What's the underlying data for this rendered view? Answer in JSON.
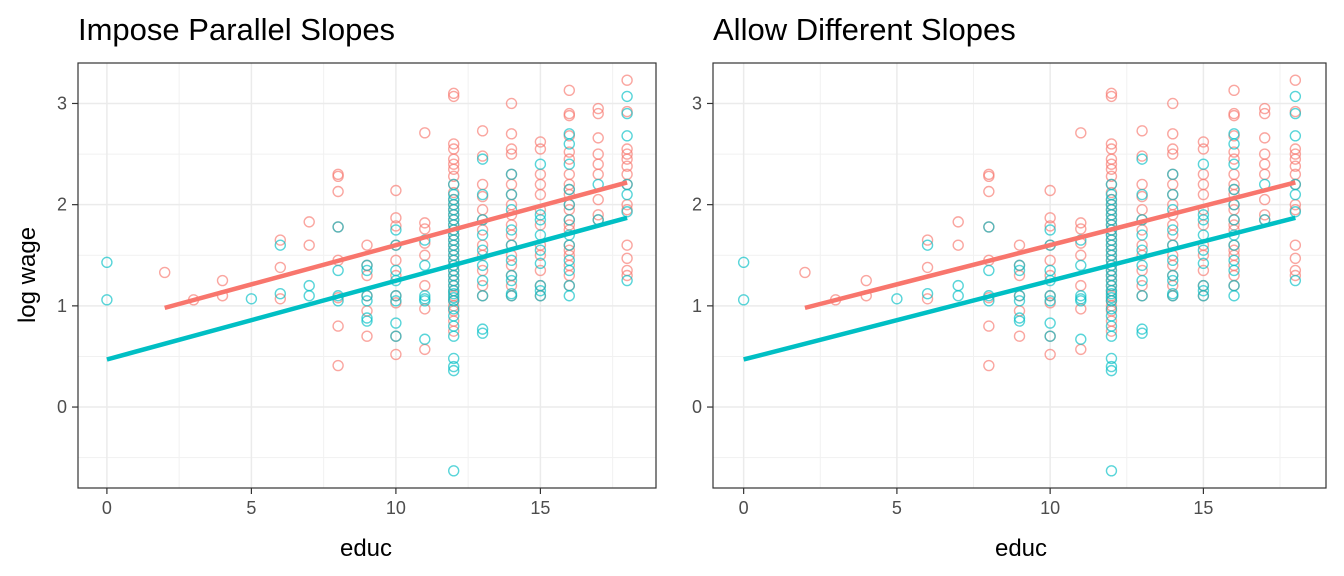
{
  "chart_data": [
    {
      "type": "scatter",
      "title": "Impose Parallel Slopes",
      "xlabel": "educ",
      "ylabel": "log wage",
      "xlim": [
        -1,
        19
      ],
      "ylim": [
        -0.8,
        3.4
      ],
      "xticks": [
        0,
        5,
        10,
        15
      ],
      "yticks": [
        0,
        1,
        2,
        3
      ],
      "grid": true,
      "legend": "none",
      "series": [
        {
          "color": "#F8766D",
          "points": [
            [
              2,
              1.33
            ],
            [
              3,
              1.06
            ],
            [
              4,
              1.25
            ],
            [
              4,
              1.1
            ],
            [
              6,
              1.65
            ],
            [
              6,
              1.38
            ],
            [
              6,
              1.07
            ],
            [
              7,
              1.83
            ],
            [
              7,
              1.6
            ],
            [
              8,
              2.3
            ],
            [
              8,
              2.28
            ],
            [
              8,
              2.13
            ],
            [
              8,
              1.78
            ],
            [
              8,
              1.45
            ],
            [
              8,
              1.08
            ],
            [
              8,
              0.8
            ],
            [
              8,
              0.41
            ],
            [
              9,
              1.6
            ],
            [
              9,
              1.4
            ],
            [
              9,
              1.3
            ],
            [
              9,
              1.1
            ],
            [
              9,
              0.95
            ],
            [
              9,
              0.7
            ],
            [
              10,
              2.14
            ],
            [
              10,
              1.87
            ],
            [
              10,
              1.79
            ],
            [
              10,
              1.6
            ],
            [
              10,
              1.45
            ],
            [
              10,
              1.3
            ],
            [
              10,
              1.1
            ],
            [
              10,
              1.03
            ],
            [
              10,
              0.7
            ],
            [
              10,
              0.52
            ],
            [
              11,
              2.71
            ],
            [
              11,
              1.82
            ],
            [
              11,
              1.76
            ],
            [
              11,
              1.62
            ],
            [
              11,
              1.5
            ],
            [
              11,
              1.2
            ],
            [
              11,
              0.97
            ],
            [
              11,
              0.57
            ],
            [
              12,
              3.1
            ],
            [
              12,
              3.07
            ],
            [
              12,
              2.6
            ],
            [
              12,
              2.55
            ],
            [
              12,
              2.45
            ],
            [
              12,
              2.4
            ],
            [
              12,
              2.35
            ],
            [
              12,
              2.28
            ],
            [
              12,
              2.2
            ],
            [
              12,
              2.12
            ],
            [
              12,
              2.05
            ],
            [
              12,
              2.0
            ],
            [
              12,
              1.95
            ],
            [
              12,
              1.9
            ],
            [
              12,
              1.85
            ],
            [
              12,
              1.8
            ],
            [
              12,
              1.75
            ],
            [
              12,
              1.7
            ],
            [
              12,
              1.65
            ],
            [
              12,
              1.6
            ],
            [
              12,
              1.55
            ],
            [
              12,
              1.5
            ],
            [
              12,
              1.45
            ],
            [
              12,
              1.4
            ],
            [
              12,
              1.35
            ],
            [
              12,
              1.3
            ],
            [
              12,
              1.25
            ],
            [
              12,
              1.2
            ],
            [
              12,
              1.15
            ],
            [
              12,
              1.1
            ],
            [
              12,
              1.05
            ],
            [
              12,
              1.0
            ],
            [
              12,
              0.95
            ],
            [
              12,
              0.85
            ],
            [
              12,
              0.75
            ],
            [
              13,
              2.73
            ],
            [
              13,
              2.48
            ],
            [
              13,
              2.2
            ],
            [
              13,
              2.08
            ],
            [
              13,
              1.95
            ],
            [
              13,
              1.85
            ],
            [
              13,
              1.75
            ],
            [
              13,
              1.6
            ],
            [
              13,
              1.5
            ],
            [
              13,
              1.35
            ],
            [
              13,
              1.2
            ],
            [
              13,
              1.1
            ],
            [
              14,
              3.0
            ],
            [
              14,
              2.7
            ],
            [
              14,
              2.55
            ],
            [
              14,
              2.5
            ],
            [
              14,
              2.3
            ],
            [
              14,
              2.2
            ],
            [
              14,
              2.1
            ],
            [
              14,
              2.0
            ],
            [
              14,
              1.9
            ],
            [
              14,
              1.8
            ],
            [
              14,
              1.7
            ],
            [
              14,
              1.6
            ],
            [
              14,
              1.5
            ],
            [
              14,
              1.4
            ],
            [
              14,
              1.3
            ],
            [
              14,
              1.2
            ],
            [
              14,
              1.1
            ],
            [
              15,
              2.62
            ],
            [
              15,
              2.55
            ],
            [
              15,
              2.3
            ],
            [
              15,
              2.2
            ],
            [
              15,
              2.1
            ],
            [
              15,
              1.95
            ],
            [
              15,
              1.8
            ],
            [
              15,
              1.6
            ],
            [
              15,
              1.5
            ],
            [
              15,
              1.35
            ],
            [
              15,
              1.2
            ],
            [
              15,
              1.1
            ],
            [
              16,
              3.13
            ],
            [
              16,
              2.9
            ],
            [
              16,
              2.88
            ],
            [
              16,
              2.68
            ],
            [
              16,
              2.52
            ],
            [
              16,
              2.45
            ],
            [
              16,
              2.3
            ],
            [
              16,
              2.2
            ],
            [
              16,
              2.15
            ],
            [
              16,
              2.1
            ],
            [
              16,
              2.0
            ],
            [
              16,
              1.95
            ],
            [
              16,
              1.85
            ],
            [
              16,
              1.8
            ],
            [
              16,
              1.75
            ],
            [
              16,
              1.6
            ],
            [
              16,
              1.55
            ],
            [
              16,
              1.5
            ],
            [
              16,
              1.4
            ],
            [
              16,
              1.3
            ],
            [
              16,
              1.2
            ],
            [
              17,
              2.95
            ],
            [
              17,
              2.9
            ],
            [
              17,
              2.66
            ],
            [
              17,
              2.5
            ],
            [
              17,
              2.4
            ],
            [
              17,
              2.3
            ],
            [
              17,
              2.05
            ],
            [
              17,
              1.9
            ],
            [
              17,
              1.85
            ],
            [
              18,
              3.23
            ],
            [
              18,
              2.92
            ],
            [
              18,
              2.55
            ],
            [
              18,
              2.5
            ],
            [
              18,
              2.45
            ],
            [
              18,
              2.38
            ],
            [
              18,
              2.3
            ],
            [
              18,
              2.2
            ],
            [
              18,
              2.0
            ],
            [
              18,
              1.95
            ],
            [
              18,
              1.6
            ],
            [
              18,
              1.47
            ],
            [
              18,
              1.35
            ],
            [
              18,
              1.3
            ]
          ],
          "line": [
            [
              2,
              0.98
            ],
            [
              18,
              2.22
            ]
          ]
        },
        {
          "color": "#00BFC4",
          "points": [
            [
              0,
              1.43
            ],
            [
              0,
              1.06
            ],
            [
              5,
              1.07
            ],
            [
              6,
              1.6
            ],
            [
              6,
              1.12
            ],
            [
              7,
              1.2
            ],
            [
              7,
              1.1
            ],
            [
              8,
              1.78
            ],
            [
              8,
              1.35
            ],
            [
              8,
              1.1
            ],
            [
              8,
              1.05
            ],
            [
              9,
              1.4
            ],
            [
              9,
              1.35
            ],
            [
              9,
              1.1
            ],
            [
              9,
              1.05
            ],
            [
              9,
              0.88
            ],
            [
              9,
              0.85
            ],
            [
              10,
              1.75
            ],
            [
              10,
              1.6
            ],
            [
              10,
              1.35
            ],
            [
              10,
              1.25
            ],
            [
              10,
              1.1
            ],
            [
              10,
              1.05
            ],
            [
              10,
              0.83
            ],
            [
              10,
              0.7
            ],
            [
              11,
              1.65
            ],
            [
              11,
              1.4
            ],
            [
              11,
              1.1
            ],
            [
              11,
              1.07
            ],
            [
              11,
              1.05
            ],
            [
              11,
              0.67
            ],
            [
              12,
              2.2
            ],
            [
              12,
              2.1
            ],
            [
              12,
              2.05
            ],
            [
              12,
              2.0
            ],
            [
              12,
              1.95
            ],
            [
              12,
              1.9
            ],
            [
              12,
              1.85
            ],
            [
              12,
              1.8
            ],
            [
              12,
              1.75
            ],
            [
              12,
              1.7
            ],
            [
              12,
              1.65
            ],
            [
              12,
              1.6
            ],
            [
              12,
              1.55
            ],
            [
              12,
              1.5
            ],
            [
              12,
              1.45
            ],
            [
              12,
              1.4
            ],
            [
              12,
              1.35
            ],
            [
              12,
              1.3
            ],
            [
              12,
              1.25
            ],
            [
              12,
              1.2
            ],
            [
              12,
              1.15
            ],
            [
              12,
              1.12
            ],
            [
              12,
              1.08
            ],
            [
              12,
              1.05
            ],
            [
              12,
              0.97
            ],
            [
              12,
              0.9
            ],
            [
              12,
              0.8
            ],
            [
              12,
              0.7
            ],
            [
              12,
              0.48
            ],
            [
              12,
              0.4
            ],
            [
              12,
              0.36
            ],
            [
              12,
              -0.63
            ],
            [
              13,
              2.45
            ],
            [
              13,
              2.1
            ],
            [
              13,
              1.85
            ],
            [
              13,
              1.7
            ],
            [
              13,
              1.55
            ],
            [
              13,
              1.4
            ],
            [
              13,
              1.25
            ],
            [
              13,
              1.1
            ],
            [
              13,
              0.77
            ],
            [
              13,
              0.73
            ],
            [
              14,
              2.3
            ],
            [
              14,
              2.1
            ],
            [
              14,
              1.95
            ],
            [
              14,
              1.75
            ],
            [
              14,
              1.6
            ],
            [
              14,
              1.45
            ],
            [
              14,
              1.3
            ],
            [
              14,
              1.25
            ],
            [
              14,
              1.12
            ],
            [
              14,
              1.1
            ],
            [
              15,
              2.4
            ],
            [
              15,
              1.9
            ],
            [
              15,
              1.85
            ],
            [
              15,
              1.7
            ],
            [
              15,
              1.55
            ],
            [
              15,
              1.42
            ],
            [
              15,
              1.2
            ],
            [
              15,
              1.15
            ],
            [
              15,
              1.1
            ],
            [
              16,
              2.7
            ],
            [
              16,
              2.6
            ],
            [
              16,
              2.4
            ],
            [
              16,
              2.15
            ],
            [
              16,
              2.0
            ],
            [
              16,
              1.85
            ],
            [
              16,
              1.7
            ],
            [
              16,
              1.6
            ],
            [
              16,
              1.45
            ],
            [
              16,
              1.35
            ],
            [
              16,
              1.2
            ],
            [
              16,
              1.1
            ],
            [
              17,
              2.2
            ],
            [
              17,
              1.85
            ],
            [
              18,
              3.07
            ],
            [
              18,
              2.9
            ],
            [
              18,
              2.68
            ],
            [
              18,
              2.2
            ],
            [
              18,
              2.1
            ],
            [
              18,
              1.93
            ],
            [
              18,
              1.25
            ]
          ],
          "line": [
            [
              0,
              0.47
            ],
            [
              18,
              1.87
            ]
          ]
        }
      ]
    },
    {
      "type": "scatter",
      "title": "Allow Different Slopes",
      "xlabel": "educ",
      "ylabel": "",
      "xlim": [
        -1,
        19
      ],
      "ylim": [
        -0.8,
        3.4
      ],
      "xticks": [
        0,
        5,
        10,
        15
      ],
      "yticks": [
        0,
        1,
        2,
        3
      ],
      "grid": true,
      "legend": "none",
      "series": [
        {
          "color": "#F8766D",
          "points": "same as left panel",
          "line": [
            [
              2,
              0.98
            ],
            [
              18,
              2.22
            ]
          ]
        },
        {
          "color": "#00BFC4",
          "points": "same as left panel",
          "line": [
            [
              0,
              0.47
            ],
            [
              18,
              1.87
            ]
          ]
        }
      ]
    }
  ]
}
